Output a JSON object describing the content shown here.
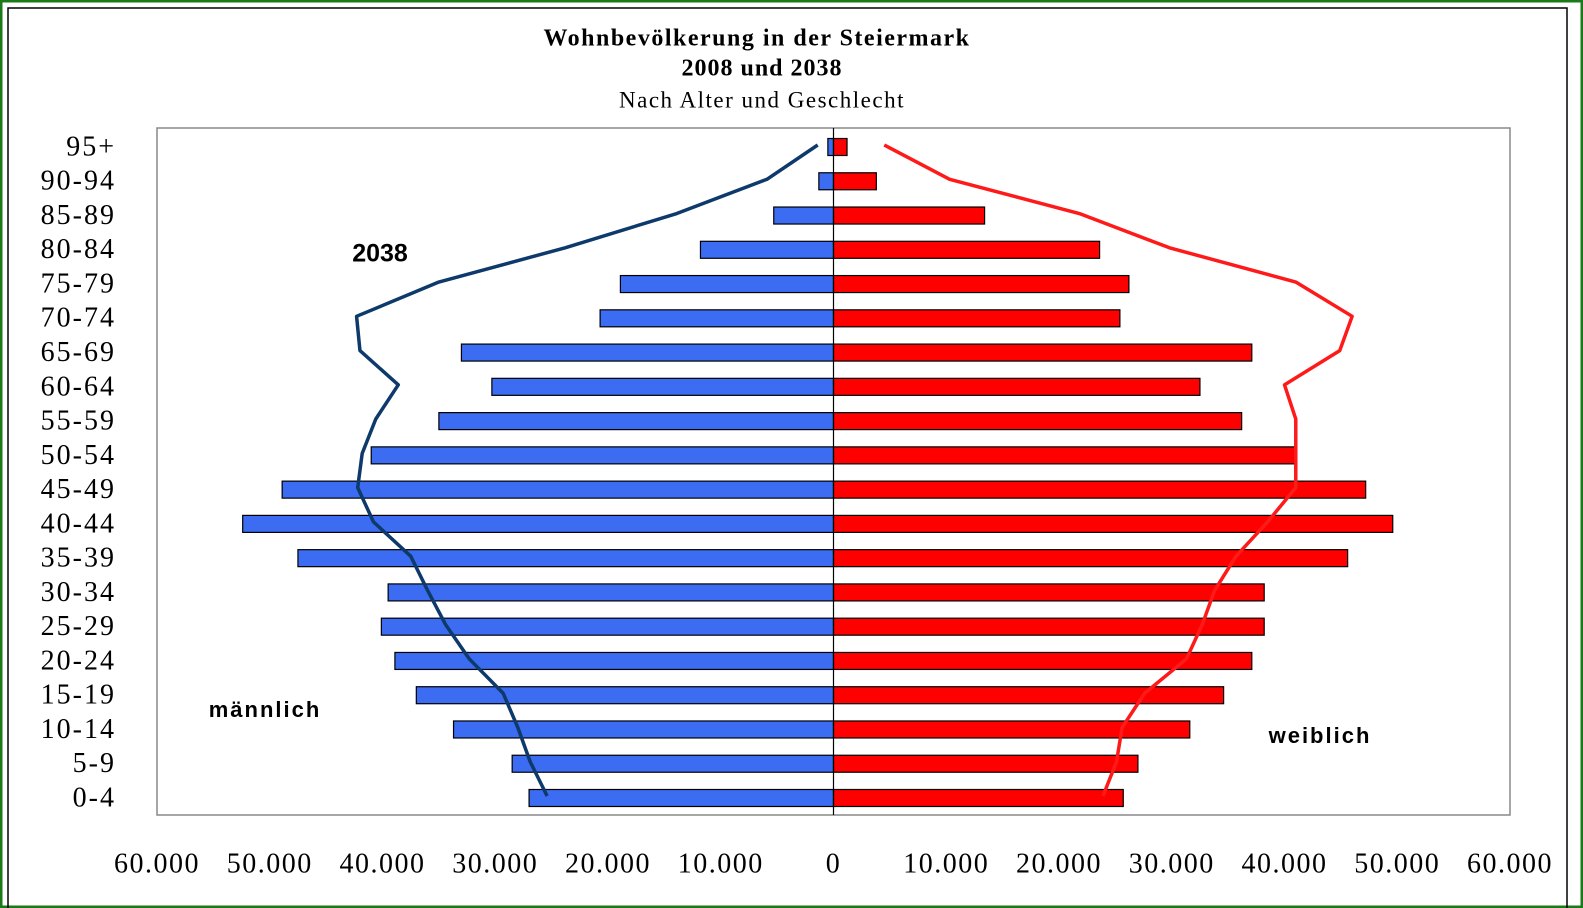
{
  "chart_data": {
    "type": "pyramid",
    "title": "Wohnbevölkerung in der Steiermark",
    "subtitle_bold": "2008 und 2038",
    "subtitle": "Nach Alter und Geschlecht",
    "categories": [
      "95+",
      "90-94",
      "85-89",
      "80-84",
      "75-79",
      "70-74",
      "65-69",
      "60-64",
      "55-59",
      "50-54",
      "45-49",
      "40-44",
      "35-39",
      "30-34",
      "25-29",
      "20-24",
      "15-19",
      "10-14",
      "5-9",
      "0-4"
    ],
    "series": [
      {
        "side": "left",
        "kind": "bar",
        "color": "#3b6cf2",
        "values": [
          500,
          1300,
          5300,
          11800,
          18900,
          20700,
          33000,
          30300,
          35000,
          41000,
          48900,
          52400,
          47500,
          39500,
          40100,
          38900,
          37000,
          33700,
          28500,
          27000
        ]
      },
      {
        "side": "right",
        "kind": "bar",
        "color": "#ff0000",
        "values": [
          1200,
          3800,
          13400,
          23600,
          26200,
          25400,
          37100,
          32500,
          36200,
          41000,
          47200,
          49600,
          45600,
          38200,
          38200,
          37100,
          34600,
          31600,
          27000,
          25700
        ]
      },
      {
        "side": "left",
        "kind": "line",
        "color": "#0d3a6b",
        "values": [
          1400,
          5900,
          13900,
          23800,
          35000,
          42300,
          42000,
          38600,
          40600,
          41800,
          42200,
          40800,
          37500,
          36000,
          34400,
          32300,
          29300,
          28000,
          26900,
          25400
        ]
      },
      {
        "side": "right",
        "kind": "line",
        "color": "#ff1a1a",
        "values": [
          4500,
          10300,
          21800,
          29800,
          41000,
          46000,
          44900,
          40000,
          41000,
          41000,
          41000,
          38500,
          35700,
          33800,
          32700,
          31300,
          27600,
          25600,
          25100,
          23900
        ]
      }
    ],
    "annotations": [
      "2038",
      "männlich",
      "weiblich"
    ],
    "xlim": [
      -60000,
      60000
    ],
    "xticks": [
      {
        "value": -60000,
        "label": "60.000"
      },
      {
        "value": -50000,
        "label": "50.000"
      },
      {
        "value": -40000,
        "label": "40.000"
      },
      {
        "value": -30000,
        "label": "30.000"
      },
      {
        "value": -20000,
        "label": "20.000"
      },
      {
        "value": -10000,
        "label": "10.000"
      },
      0,
      {
        "value": 10000,
        "label": "10.000"
      },
      {
        "value": 20000,
        "label": "20.000"
      },
      {
        "value": 30000,
        "label": "30.000"
      },
      {
        "value": 40000,
        "label": "40.000"
      },
      {
        "value": 50000,
        "label": "50.000"
      },
      {
        "value": 60000,
        "label": "60.000"
      }
    ]
  }
}
